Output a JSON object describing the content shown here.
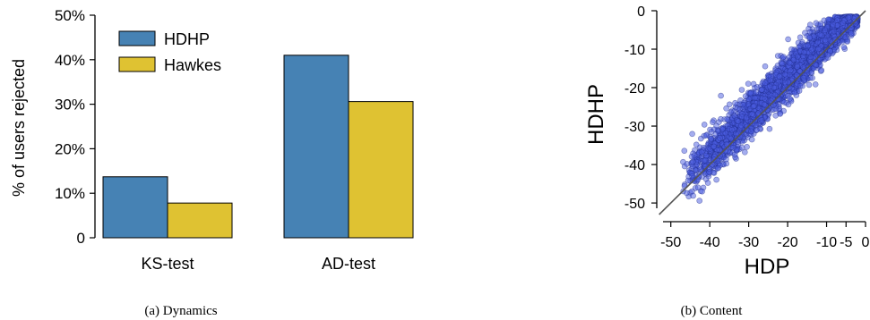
{
  "colors": {
    "hdhp": "#4682b4",
    "hawkes": "#dfc232",
    "scatter_fill": "#4a5ce0",
    "scatter_stroke": "#1f2c8a",
    "diagonal": "#555555",
    "axis": "#000000"
  },
  "chart_data": [
    {
      "type": "bar",
      "caption": "(a) Dynamics",
      "ylabel": "% of users rejected",
      "categories": [
        "KS-test",
        "AD-test"
      ],
      "series": [
        {
          "name": "HDHP",
          "values": [
            13.7,
            41.0
          ]
        },
        {
          "name": "Hawkes",
          "values": [
            7.8,
            30.6
          ]
        }
      ],
      "ylim": [
        0,
        50
      ],
      "yticks": [
        0,
        10,
        20,
        30,
        40,
        50
      ],
      "ytick_labels": [
        "0",
        "10%",
        "20%",
        "30%",
        "40%",
        "50%"
      ],
      "legend": "top-left",
      "grid": false
    },
    {
      "type": "scatter",
      "caption": "(b) Content",
      "xlabel": "HDP",
      "ylabel": "HDHP",
      "xlim": [
        -52,
        0
      ],
      "ylim": [
        -53,
        0
      ],
      "xticks": [
        -50,
        -40,
        -30,
        -20,
        -10,
        -5,
        0
      ],
      "xtick_labels": [
        "-50",
        "-40",
        "-30",
        "-20",
        "-10",
        "-5",
        "0"
      ],
      "yticks": [
        0,
        -10,
        -20,
        -30,
        -40,
        -50
      ],
      "ytick_labels": [
        "0",
        "-10",
        "-20",
        "-30",
        "-40",
        "-50"
      ],
      "reference_line": "y = x",
      "approx_points": 3000,
      "point_cloud": {
        "x_range": [
          -47,
          -2
        ],
        "offset_y_minus_x_mean": 2.5,
        "offset_spread": 3.5
      },
      "grid": false
    }
  ]
}
